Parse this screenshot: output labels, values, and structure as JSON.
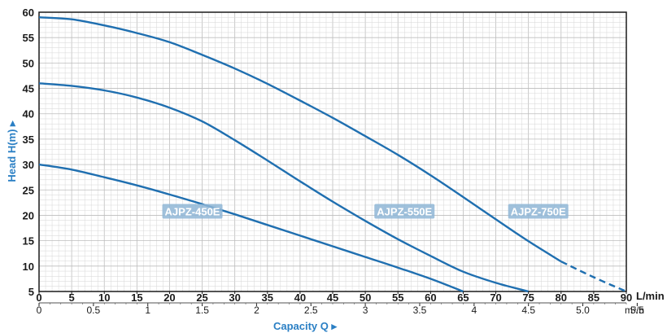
{
  "chart_data": {
    "type": "line",
    "xlabel": "Capacity Q ▸",
    "ylabel": "Head H(m) ▸",
    "x_unit": "L/min",
    "x2_unit": "m³/h",
    "xlim": [
      0,
      90
    ],
    "ylim": [
      5,
      60
    ],
    "x_ticks": [
      0,
      5,
      10,
      15,
      20,
      25,
      30,
      35,
      40,
      45,
      50,
      55,
      60,
      65,
      70,
      75,
      80,
      85,
      90
    ],
    "y_ticks": [
      5,
      10,
      15,
      20,
      25,
      30,
      35,
      40,
      45,
      50,
      55,
      60
    ],
    "x2_ticks": [
      "0",
      "0.5",
      "1",
      "1.5",
      "2",
      "2.5",
      "3",
      "3.5",
      "4",
      "4.5",
      "5.0",
      "5.5"
    ],
    "x2_values": [
      0,
      0.5,
      1,
      1.5,
      2,
      2.5,
      3,
      3.5,
      4,
      4.5,
      5.0,
      5.5
    ],
    "grid": true,
    "colors": {
      "curve": "#1f6fb0",
      "label_bg": "#8fb6d6",
      "grid": "#d6d6d6",
      "axis_title": "#2a7fc4"
    },
    "series": [
      {
        "name": "AJPZ-450E",
        "x": [
          0,
          5,
          10,
          15,
          20,
          25,
          30,
          35,
          40,
          45,
          50,
          55,
          60,
          65
        ],
        "y": [
          30,
          29,
          27.5,
          25.9,
          24.1,
          22.2,
          20.2,
          18.1,
          16,
          13.9,
          11.8,
          9.7,
          7.5,
          5
        ]
      },
      {
        "name": "AJPZ-550E",
        "x": [
          0,
          5,
          10,
          15,
          20,
          25,
          30,
          35,
          40,
          45,
          50,
          55,
          60,
          65,
          70,
          75
        ],
        "y": [
          46,
          45.5,
          44.6,
          43.2,
          41.2,
          38.5,
          34.8,
          30.8,
          26.7,
          22.7,
          18.9,
          15.3,
          12,
          8.9,
          6.7,
          5
        ]
      },
      {
        "name": "AJPZ-750E",
        "x": [
          0,
          5,
          10,
          15,
          20,
          25,
          30,
          35,
          40,
          45,
          50,
          55,
          60,
          65,
          70,
          75,
          80,
          85,
          90
        ],
        "y": [
          59,
          58.6,
          57.4,
          55.9,
          54.1,
          51.6,
          48.9,
          45.9,
          42.6,
          39.2,
          35.6,
          31.9,
          27.9,
          23.6,
          19.2,
          14.9,
          10.9,
          7.8,
          5
        ],
        "dashed_from_x": 80
      }
    ]
  }
}
